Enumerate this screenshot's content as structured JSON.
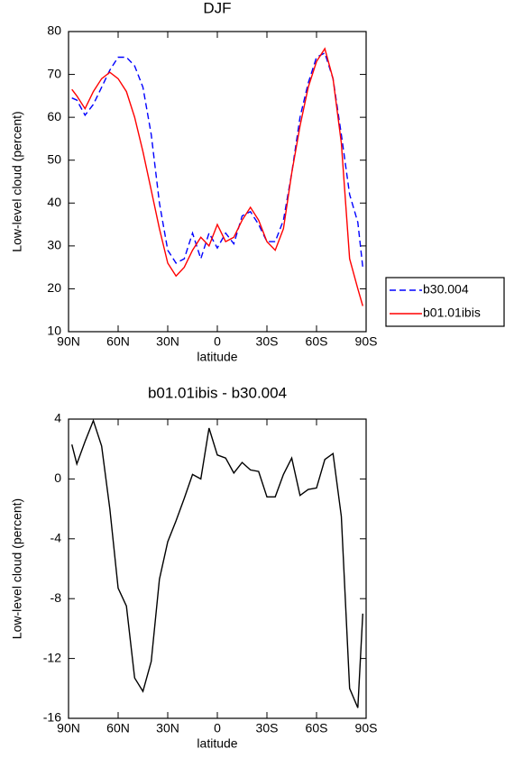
{
  "chart_data": [
    {
      "type": "line",
      "title": "DJF",
      "xlabel": "latitude",
      "ylabel": "Low-level cloud (percent)",
      "x": [
        88,
        85,
        80,
        75,
        70,
        65,
        60,
        55,
        50,
        45,
        40,
        35,
        30,
        25,
        20,
        15,
        10,
        5,
        0,
        -5,
        -10,
        -15,
        -20,
        -25,
        -30,
        -35,
        -40,
        -45,
        -50,
        -55,
        -60,
        -65,
        -70,
        -75,
        -80,
        -85,
        -88
      ],
      "series": [
        {
          "name": "b30.004",
          "color": "#0000ff",
          "dash": true,
          "values": [
            64.5,
            64,
            60.5,
            63,
            67,
            71,
            74,
            74,
            72,
            67,
            56,
            40,
            29,
            26,
            27,
            33,
            27,
            33,
            29.5,
            33,
            30.5,
            37,
            38,
            35,
            31,
            31,
            36,
            47,
            60,
            68,
            74,
            75,
            69,
            56,
            42,
            35.5,
            25
          ]
        },
        {
          "name": "b01.01ibis",
          "color": "#ff0000",
          "dash": false,
          "values": [
            66.5,
            65,
            62,
            66,
            69,
            70.5,
            69,
            66,
            60,
            52,
            43,
            34,
            26,
            23,
            25,
            29,
            32,
            30,
            35,
            31,
            32,
            36,
            39,
            36,
            31,
            29,
            34,
            47,
            58,
            67,
            73,
            76,
            69,
            54,
            27,
            20,
            16
          ]
        }
      ],
      "xlim": [
        90,
        -90
      ],
      "xticks": [
        {
          "value": 90,
          "label": "90N"
        },
        {
          "value": 60,
          "label": "60N"
        },
        {
          "value": 30,
          "label": "30N"
        },
        0,
        {
          "value": -30,
          "label": "30S"
        },
        {
          "value": -60,
          "label": "60S"
        },
        {
          "value": -90,
          "label": "90S"
        }
      ],
      "ylim": [
        10,
        80
      ],
      "yticks": [
        10,
        20,
        30,
        40,
        50,
        60,
        70,
        80
      ],
      "legend": "right"
    },
    {
      "type": "line",
      "title": "b01.01ibis - b30.004",
      "xlabel": "latitude",
      "ylabel": "Low-level cloud (percent)",
      "x": [
        88,
        85,
        80,
        75,
        70,
        65,
        60,
        55,
        50,
        45,
        40,
        35,
        30,
        25,
        20,
        15,
        10,
        5,
        0,
        -5,
        -10,
        -15,
        -20,
        -25,
        -30,
        -35,
        -40,
        -45,
        -50,
        -55,
        -60,
        -65,
        -70,
        -75,
        -80,
        -85,
        -88
      ],
      "series": [
        {
          "color": "#000000",
          "dash": false,
          "values": [
            2.3,
            1,
            2.5,
            3.9,
            2.2,
            -2,
            -7.3,
            -8.5,
            -13.3,
            -14.2,
            -12.2,
            -6.7,
            -4.2,
            -2.8,
            -1.3,
            0.3,
            0,
            3.4,
            1.6,
            1.4,
            0.4,
            1.1,
            0.6,
            0.5,
            -1.2,
            -1.2,
            0.3,
            1.4,
            -1.1,
            -0.7,
            -0.6,
            1.3,
            1.7,
            -2.5,
            -14,
            -15.3,
            -9
          ]
        }
      ],
      "xlim": [
        90,
        -90
      ],
      "xticks": [
        {
          "value": 90,
          "label": "90N"
        },
        {
          "value": 60,
          "label": "60N"
        },
        {
          "value": 30,
          "label": "30N"
        },
        0,
        {
          "value": -30,
          "label": "30S"
        },
        {
          "value": -60,
          "label": "60S"
        },
        {
          "value": -90,
          "label": "90S"
        }
      ],
      "ylim": [
        -16,
        4
      ],
      "yticks": [
        -16,
        -12,
        -8,
        -4,
        0,
        4
      ]
    }
  ]
}
